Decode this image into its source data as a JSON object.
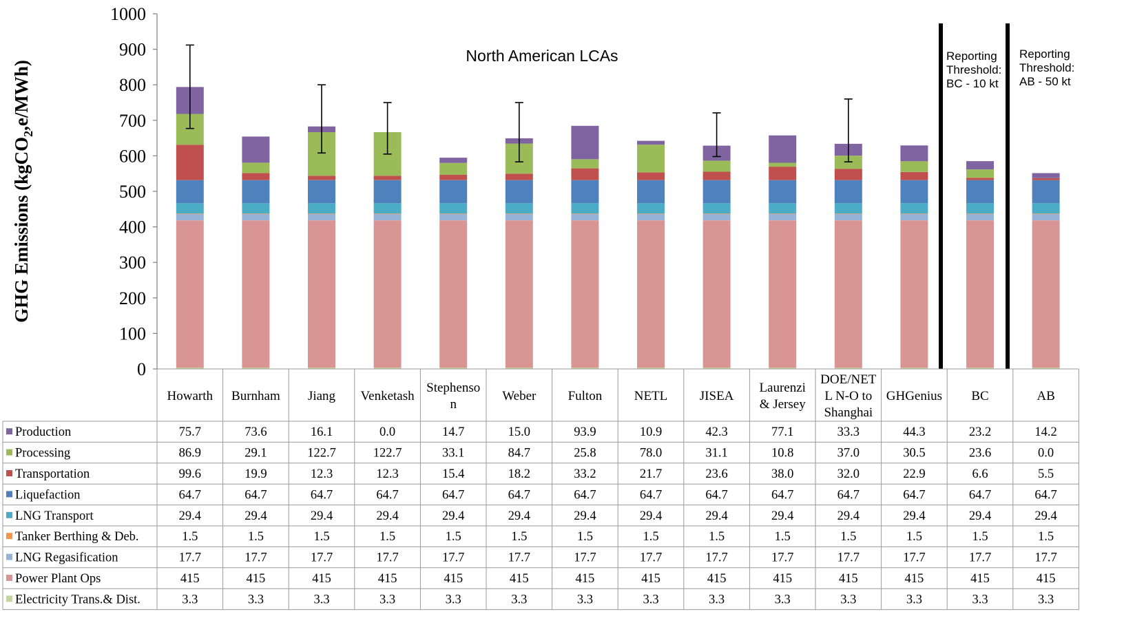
{
  "chart_data": {
    "type": "bar",
    "stacked": true,
    "ylabel": "GHG Emissions (kgCO",
    "ylabel_sub": "2",
    "ylabel_tail": ",e/MWh)",
    "ylim": [
      0,
      1000
    ],
    "yticks": [
      0,
      100,
      200,
      300,
      400,
      500,
      600,
      700,
      800,
      900,
      1000
    ],
    "annotation": "North American LCAs",
    "threshold_labels": [
      [
        "Reporting",
        "Threshold:",
        "BC - 10 kt"
      ],
      [
        "Reporting",
        "Threshold:",
        "AB - 50 kt"
      ]
    ],
    "categories": [
      "Howarth",
      "Burnham",
      "Jiang",
      "Venketash",
      "Stephenson",
      "Weber",
      "Fulton",
      "NETL",
      "JISEA",
      "Laurenzi & Jersey",
      "DOE/NETL N-O to Shanghai",
      "GHGenius",
      "BC",
      "AB"
    ],
    "category_lines": [
      [
        "Howarth"
      ],
      [
        "Burnham"
      ],
      [
        "Jiang"
      ],
      [
        "Venketash"
      ],
      [
        "Stephenso",
        "n"
      ],
      [
        "Weber"
      ],
      [
        "Fulton"
      ],
      [
        "NETL"
      ],
      [
        "JISEA"
      ],
      [
        "Laurenzi",
        "& Jersey"
      ],
      [
        "DOE/NET",
        "L N-O to",
        "Shanghai"
      ],
      [
        "GHGenius"
      ],
      [
        "BC"
      ],
      [
        "AB"
      ]
    ],
    "series": [
      {
        "name": "Electricity Trans.& Dist.",
        "color": "#c3d69b",
        "values": [
          3.3,
          3.3,
          3.3,
          3.3,
          3.3,
          3.3,
          3.3,
          3.3,
          3.3,
          3.3,
          3.3,
          3.3,
          3.3,
          3.3
        ],
        "labels": [
          "3.3",
          "3.3",
          "3.3",
          "3.3",
          "3.3",
          "3.3",
          "3.3",
          "3.3",
          "3.3",
          "3.3",
          "3.3",
          "3.3",
          "3.3",
          "3.3"
        ]
      },
      {
        "name": "Power Plant Ops",
        "color": "#d99594",
        "values": [
          415,
          415,
          415,
          415,
          415,
          415,
          415,
          415,
          415,
          415,
          415,
          415,
          415,
          415
        ],
        "labels": [
          "415",
          "415",
          "415",
          "415",
          "415",
          "415",
          "415",
          "415",
          "415",
          "415",
          "415",
          "415",
          "415",
          "415"
        ]
      },
      {
        "name": "LNG Regasification",
        "color": "#95b3d7",
        "values": [
          17.7,
          17.7,
          17.7,
          17.7,
          17.7,
          17.7,
          17.7,
          17.7,
          17.7,
          17.7,
          17.7,
          17.7,
          17.7,
          17.7
        ],
        "labels": [
          "17.7",
          "17.7",
          "17.7",
          "17.7",
          "17.7",
          "17.7",
          "17.7",
          "17.7",
          "17.7",
          "17.7",
          "17.7",
          "17.7",
          "17.7",
          "17.7"
        ]
      },
      {
        "name": "Tanker Berthing & Deb.",
        "color": "#f79646",
        "values": [
          1.5,
          1.5,
          1.5,
          1.5,
          1.5,
          1.5,
          1.5,
          1.5,
          1.5,
          1.5,
          1.5,
          1.5,
          1.5,
          1.5
        ],
        "labels": [
          "1.5",
          "1.5",
          "1.5",
          "1.5",
          "1.5",
          "1.5",
          "1.5",
          "1.5",
          "1.5",
          "1.5",
          "1.5",
          "1.5",
          "1.5",
          "1.5"
        ]
      },
      {
        "name": "LNG Transport",
        "color": "#4bacc6",
        "values": [
          29.4,
          29.4,
          29.4,
          29.4,
          29.4,
          29.4,
          29.4,
          29.4,
          29.4,
          29.4,
          29.4,
          29.4,
          29.4,
          29.4
        ],
        "labels": [
          "29.4",
          "29.4",
          "29.4",
          "29.4",
          "29.4",
          "29.4",
          "29.4",
          "29.4",
          "29.4",
          "29.4",
          "29.4",
          "29.4",
          "29.4",
          "29.4"
        ]
      },
      {
        "name": "Liquefaction",
        "color": "#4f81bd",
        "values": [
          64.7,
          64.7,
          64.7,
          64.7,
          64.7,
          64.7,
          64.7,
          64.7,
          64.7,
          64.7,
          64.7,
          64.7,
          64.7,
          64.7
        ],
        "labels": [
          "64.7",
          "64.7",
          "64.7",
          "64.7",
          "64.7",
          "64.7",
          "64.7",
          "64.7",
          "64.7",
          "64.7",
          "64.7",
          "64.7",
          "64.7",
          "64.7"
        ]
      },
      {
        "name": "Transportation",
        "color": "#c0504d",
        "values": [
          99.6,
          19.9,
          12.3,
          12.3,
          15.4,
          18.2,
          33.2,
          21.7,
          23.6,
          38.0,
          32.0,
          22.9,
          6.6,
          5.5
        ],
        "labels": [
          "99.6",
          "19.9",
          "12.3",
          "12.3",
          "15.4",
          "18.2",
          "33.2",
          "21.7",
          "23.6",
          "38.0",
          "32.0",
          "22.9",
          "6.6",
          "5.5"
        ]
      },
      {
        "name": "Processing",
        "color": "#9bbb59",
        "values": [
          86.9,
          29.1,
          122.7,
          122.7,
          33.1,
          84.7,
          25.8,
          78.0,
          31.1,
          10.8,
          37.0,
          30.5,
          23.6,
          0.0
        ],
        "labels": [
          "86.9",
          "29.1",
          "122.7",
          "122.7",
          "33.1",
          "84.7",
          "25.8",
          "78.0",
          "31.1",
          "10.8",
          "37.0",
          "30.5",
          "23.6",
          "0.0"
        ]
      },
      {
        "name": "Production",
        "color": "#8064a2",
        "values": [
          75.7,
          73.6,
          16.1,
          0.0,
          14.7,
          15.0,
          93.9,
          10.9,
          42.3,
          77.1,
          33.3,
          44.3,
          23.2,
          14.2
        ],
        "labels": [
          "75.7",
          "73.6",
          "16.1",
          "0.0",
          "14.7",
          "15.0",
          "93.9",
          "10.9",
          "42.3",
          "77.1",
          "33.3",
          "44.3",
          "23.2",
          "14.2"
        ]
      }
    ],
    "error_bars": [
      {
        "index": 0,
        "low": 677,
        "high": 912
      },
      {
        "index": 2,
        "low": 608,
        "high": 800
      },
      {
        "index": 3,
        "low": 605,
        "high": 750
      },
      {
        "index": 5,
        "low": 583,
        "high": 750
      },
      {
        "index": 8,
        "low": 598,
        "high": 721
      },
      {
        "index": 10,
        "low": 583,
        "high": 760
      }
    ],
    "grid": false,
    "legend": "table"
  }
}
